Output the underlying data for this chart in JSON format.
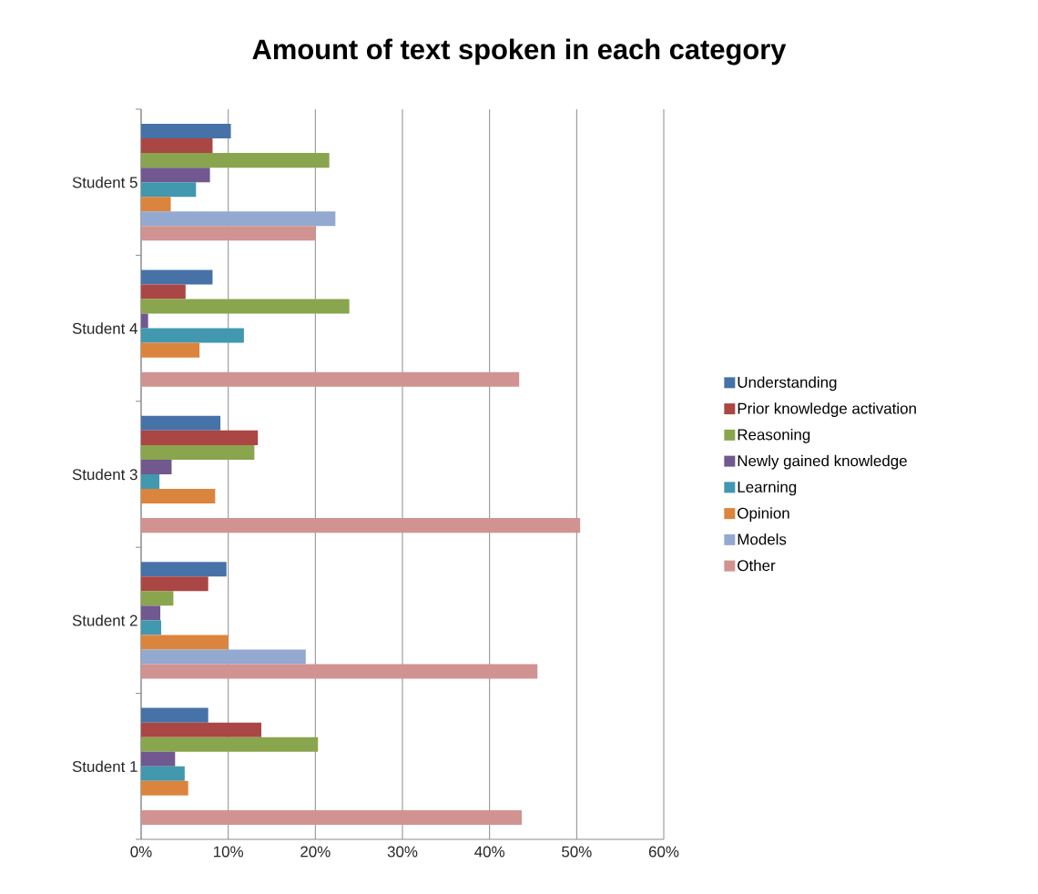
{
  "chart_data": {
    "type": "bar",
    "orientation": "horizontal",
    "title": "Amount of text spoken in each category",
    "categories": [
      "Student 5",
      "Student 4",
      "Student 3",
      "Student 2",
      "Student 1"
    ],
    "series": [
      {
        "name": "Understanding",
        "color": "#4672a8",
        "values": [
          10.3,
          8.2,
          9.1,
          9.8,
          7.7
        ]
      },
      {
        "name": "Prior knowledge activation",
        "color": "#aa4643",
        "values": [
          8.2,
          5.1,
          13.4,
          7.7,
          13.8
        ]
      },
      {
        "name": "Reasoning",
        "color": "#89a54e",
        "values": [
          21.6,
          23.9,
          13.0,
          3.7,
          20.3
        ]
      },
      {
        "name": "Newly gained knowledge",
        "color": "#71588f",
        "values": [
          7.9,
          0.8,
          3.5,
          2.2,
          3.9
        ]
      },
      {
        "name": "Learning",
        "color": "#4198af",
        "values": [
          6.3,
          11.8,
          2.1,
          2.3,
          5.0
        ]
      },
      {
        "name": "Opinion",
        "color": "#db843d",
        "values": [
          3.4,
          6.7,
          8.5,
          10.0,
          5.4
        ]
      },
      {
        "name": "Models",
        "color": "#93a9cf",
        "values": [
          22.3,
          null,
          null,
          18.9,
          null
        ]
      },
      {
        "name": "Other",
        "color": "#d19392",
        "values": [
          20.0,
          43.4,
          50.4,
          45.5,
          43.7
        ]
      }
    ],
    "xlim": [
      0,
      60
    ],
    "xticks": [
      {
        "value": 0,
        "label": "0%"
      },
      {
        "value": 10,
        "label": "10%"
      },
      {
        "value": 20,
        "label": "20%"
      },
      {
        "value": 30,
        "label": "30%"
      },
      {
        "value": 40,
        "label": "40%"
      },
      {
        "value": 50,
        "label": "50%"
      },
      {
        "value": 60,
        "label": "60%"
      }
    ],
    "grid": "x",
    "legend": "right"
  }
}
